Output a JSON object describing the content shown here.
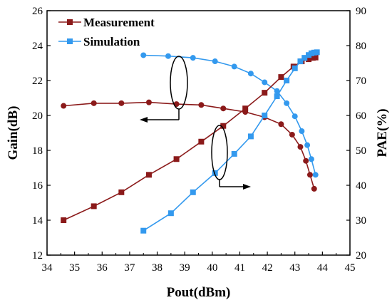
{
  "chart_data": {
    "type": "line",
    "xlabel": "Pout(dBm)",
    "ylabel": "Gain(dB)",
    "y2label": "PAE(%)",
    "xlim": [
      34,
      45
    ],
    "ylim": [
      12,
      26
    ],
    "y2lim": [
      20,
      90
    ],
    "x_ticks": [
      "34",
      "35",
      "36",
      "37",
      "38",
      "39",
      "40",
      "41",
      "42",
      "43",
      "44",
      "45"
    ],
    "y_ticks": [
      "12",
      "14",
      "16",
      "18",
      "20",
      "22",
      "24",
      "26"
    ],
    "y2_ticks": [
      "20",
      "30",
      "40",
      "50",
      "60",
      "70",
      "80",
      "90"
    ],
    "grid": false,
    "legend_position": "top-left",
    "colors": {
      "measurement": "#8B1A1A",
      "simulation": "#3399EE"
    },
    "series": [
      {
        "name": "Measurement",
        "quantity": "gain",
        "axis": "left",
        "marker": "circle",
        "color": "#8B1A1A",
        "x": [
          34.6,
          35.7,
          36.7,
          37.7,
          38.7,
          39.6,
          40.4,
          41.2,
          41.9,
          42.5,
          42.9,
          43.2,
          43.4,
          43.55,
          43.7
        ],
        "y": [
          20.55,
          20.7,
          20.7,
          20.75,
          20.65,
          20.6,
          20.4,
          20.2,
          19.9,
          19.5,
          18.9,
          18.2,
          17.4,
          16.6,
          15.8
        ]
      },
      {
        "name": "Simulation",
        "quantity": "gain",
        "axis": "left",
        "marker": "circle",
        "color": "#3399EE",
        "x": [
          37.5,
          38.4,
          39.3,
          40.1,
          40.8,
          41.4,
          41.9,
          42.35,
          42.7,
          43.0,
          43.25,
          43.45,
          43.6,
          43.75
        ],
        "y": [
          23.45,
          23.4,
          23.3,
          23.1,
          22.8,
          22.4,
          21.9,
          21.4,
          20.7,
          19.95,
          19.1,
          18.3,
          17.5,
          16.6
        ]
      },
      {
        "name": "Measurement",
        "quantity": "pae",
        "axis": "right",
        "marker": "square",
        "color": "#8B1A1A",
        "x": [
          34.6,
          35.7,
          36.7,
          37.7,
          38.7,
          39.6,
          40.4,
          41.2,
          41.9,
          42.5,
          42.95,
          43.25,
          43.5,
          43.65,
          43.75
        ],
        "y": [
          30,
          34,
          38,
          43,
          47.5,
          52.5,
          57,
          62,
          66.5,
          71,
          74,
          75.5,
          76.1,
          76.5,
          76.6
        ]
      },
      {
        "name": "Simulation",
        "quantity": "pae",
        "axis": "right",
        "marker": "square",
        "color": "#3399EE",
        "x": [
          37.5,
          38.5,
          39.3,
          40.1,
          40.8,
          41.4,
          41.9,
          42.35,
          42.7,
          43.0,
          43.2,
          43.35,
          43.5,
          43.6,
          43.7,
          43.8
        ],
        "y": [
          27,
          32,
          38,
          43.5,
          49,
          54,
          60,
          65.5,
          70,
          73.5,
          75.5,
          76.5,
          77.3,
          77.8,
          78,
          78.1
        ]
      }
    ]
  }
}
